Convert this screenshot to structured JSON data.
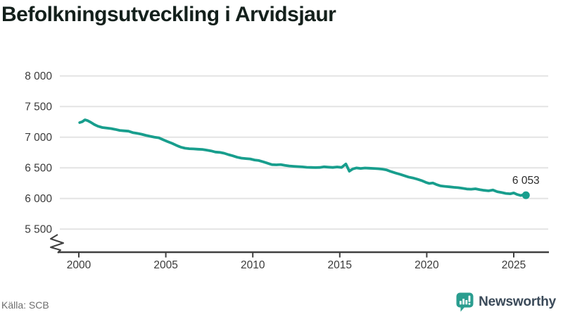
{
  "title": "Befolkningsutveckling i Arvidsjaur",
  "source": "Källa: SCB",
  "branding": {
    "name": "Newsworthy",
    "icon": "newsworthy-chart-bubble-icon"
  },
  "colors": {
    "line": "#189e8d",
    "grid": "#e4e4e4",
    "axis": "#404040",
    "tick_text": "#3a3a3a",
    "end_label_text": "#2b2b2b",
    "muted_text": "#6e6e6e",
    "brand_teal": "#2a9d8f",
    "brand_text": "#3b4a59"
  },
  "chart_data": {
    "type": "line",
    "title": "Befolkningsutveckling i Arvidsjaur",
    "xlabel": "",
    "ylabel": "",
    "x_ticks": [
      2000,
      2005,
      2010,
      2015,
      2020,
      2025
    ],
    "y_ticks": [
      {
        "value": 8000,
        "label": "8 000"
      },
      {
        "value": 7500,
        "label": "7 500"
      },
      {
        "value": 7000,
        "label": "7 000"
      },
      {
        "value": 6500,
        "label": "6 500"
      },
      {
        "value": 6000,
        "label": "6 000"
      },
      {
        "value": 5500,
        "label": "5 500"
      }
    ],
    "xlim": [
      1998.9,
      2027.0
    ],
    "ylim": [
      5350,
      8050
    ],
    "axis_break": true,
    "grid": "horizontal",
    "legend_position": "none",
    "end_label": "6 053",
    "end_value": 6053,
    "series": [
      {
        "name": "Befolkning",
        "points": [
          [
            2000.05,
            7238
          ],
          [
            2000.2,
            7252
          ],
          [
            2000.35,
            7283
          ],
          [
            2000.5,
            7270
          ],
          [
            2000.7,
            7240
          ],
          [
            2000.9,
            7205
          ],
          [
            2001.1,
            7178
          ],
          [
            2001.35,
            7158
          ],
          [
            2001.6,
            7148
          ],
          [
            2001.85,
            7140
          ],
          [
            2002.1,
            7126
          ],
          [
            2002.35,
            7110
          ],
          [
            2002.6,
            7103
          ],
          [
            2002.85,
            7098
          ],
          [
            2003.1,
            7075
          ],
          [
            2003.35,
            7062
          ],
          [
            2003.6,
            7048
          ],
          [
            2003.85,
            7030
          ],
          [
            2004.1,
            7014
          ],
          [
            2004.35,
            7000
          ],
          [
            2004.6,
            6990
          ],
          [
            2004.85,
            6958
          ],
          [
            2005.1,
            6928
          ],
          [
            2005.35,
            6900
          ],
          [
            2005.6,
            6868
          ],
          [
            2005.85,
            6838
          ],
          [
            2006.1,
            6820
          ],
          [
            2006.35,
            6812
          ],
          [
            2006.6,
            6808
          ],
          [
            2006.85,
            6804
          ],
          [
            2007.1,
            6800
          ],
          [
            2007.35,
            6788
          ],
          [
            2007.6,
            6776
          ],
          [
            2007.85,
            6758
          ],
          [
            2008.1,
            6752
          ],
          [
            2008.35,
            6738
          ],
          [
            2008.6,
            6715
          ],
          [
            2008.85,
            6695
          ],
          [
            2009.1,
            6672
          ],
          [
            2009.35,
            6658
          ],
          [
            2009.6,
            6650
          ],
          [
            2009.85,
            6645
          ],
          [
            2010.1,
            6628
          ],
          [
            2010.35,
            6618
          ],
          [
            2010.6,
            6598
          ],
          [
            2010.85,
            6575
          ],
          [
            2011.1,
            6552
          ],
          [
            2011.35,
            6548
          ],
          [
            2011.6,
            6553
          ],
          [
            2011.85,
            6540
          ],
          [
            2012.1,
            6530
          ],
          [
            2012.35,
            6524
          ],
          [
            2012.6,
            6520
          ],
          [
            2012.85,
            6515
          ],
          [
            2013.1,
            6508
          ],
          [
            2013.35,
            6506
          ],
          [
            2013.6,
            6504
          ],
          [
            2013.85,
            6506
          ],
          [
            2014.1,
            6516
          ],
          [
            2014.35,
            6510
          ],
          [
            2014.6,
            6506
          ],
          [
            2014.85,
            6514
          ],
          [
            2015.1,
            6506
          ],
          [
            2015.35,
            6562
          ],
          [
            2015.55,
            6445
          ],
          [
            2015.75,
            6482
          ],
          [
            2015.95,
            6498
          ],
          [
            2016.2,
            6490
          ],
          [
            2016.45,
            6497
          ],
          [
            2016.7,
            6493
          ],
          [
            2016.95,
            6490
          ],
          [
            2017.2,
            6485
          ],
          [
            2017.45,
            6478
          ],
          [
            2017.7,
            6464
          ],
          [
            2017.95,
            6438
          ],
          [
            2018.2,
            6415
          ],
          [
            2018.45,
            6395
          ],
          [
            2018.7,
            6372
          ],
          [
            2018.95,
            6350
          ],
          [
            2019.2,
            6335
          ],
          [
            2019.45,
            6315
          ],
          [
            2019.7,
            6292
          ],
          [
            2019.95,
            6262
          ],
          [
            2020.15,
            6245
          ],
          [
            2020.35,
            6252
          ],
          [
            2020.55,
            6228
          ],
          [
            2020.8,
            6205
          ],
          [
            2021.05,
            6196
          ],
          [
            2021.3,
            6190
          ],
          [
            2021.55,
            6182
          ],
          [
            2021.8,
            6176
          ],
          [
            2022.05,
            6166
          ],
          [
            2022.3,
            6154
          ],
          [
            2022.55,
            6150
          ],
          [
            2022.8,
            6158
          ],
          [
            2023.05,
            6144
          ],
          [
            2023.3,
            6132
          ],
          [
            2023.55,
            6124
          ],
          [
            2023.8,
            6138
          ],
          [
            2024.05,
            6110
          ],
          [
            2024.3,
            6096
          ],
          [
            2024.55,
            6082
          ],
          [
            2024.8,
            6076
          ],
          [
            2025.0,
            6090
          ],
          [
            2025.2,
            6064
          ],
          [
            2025.4,
            6048
          ],
          [
            2025.55,
            6060
          ],
          [
            2025.7,
            6053
          ]
        ]
      }
    ]
  }
}
